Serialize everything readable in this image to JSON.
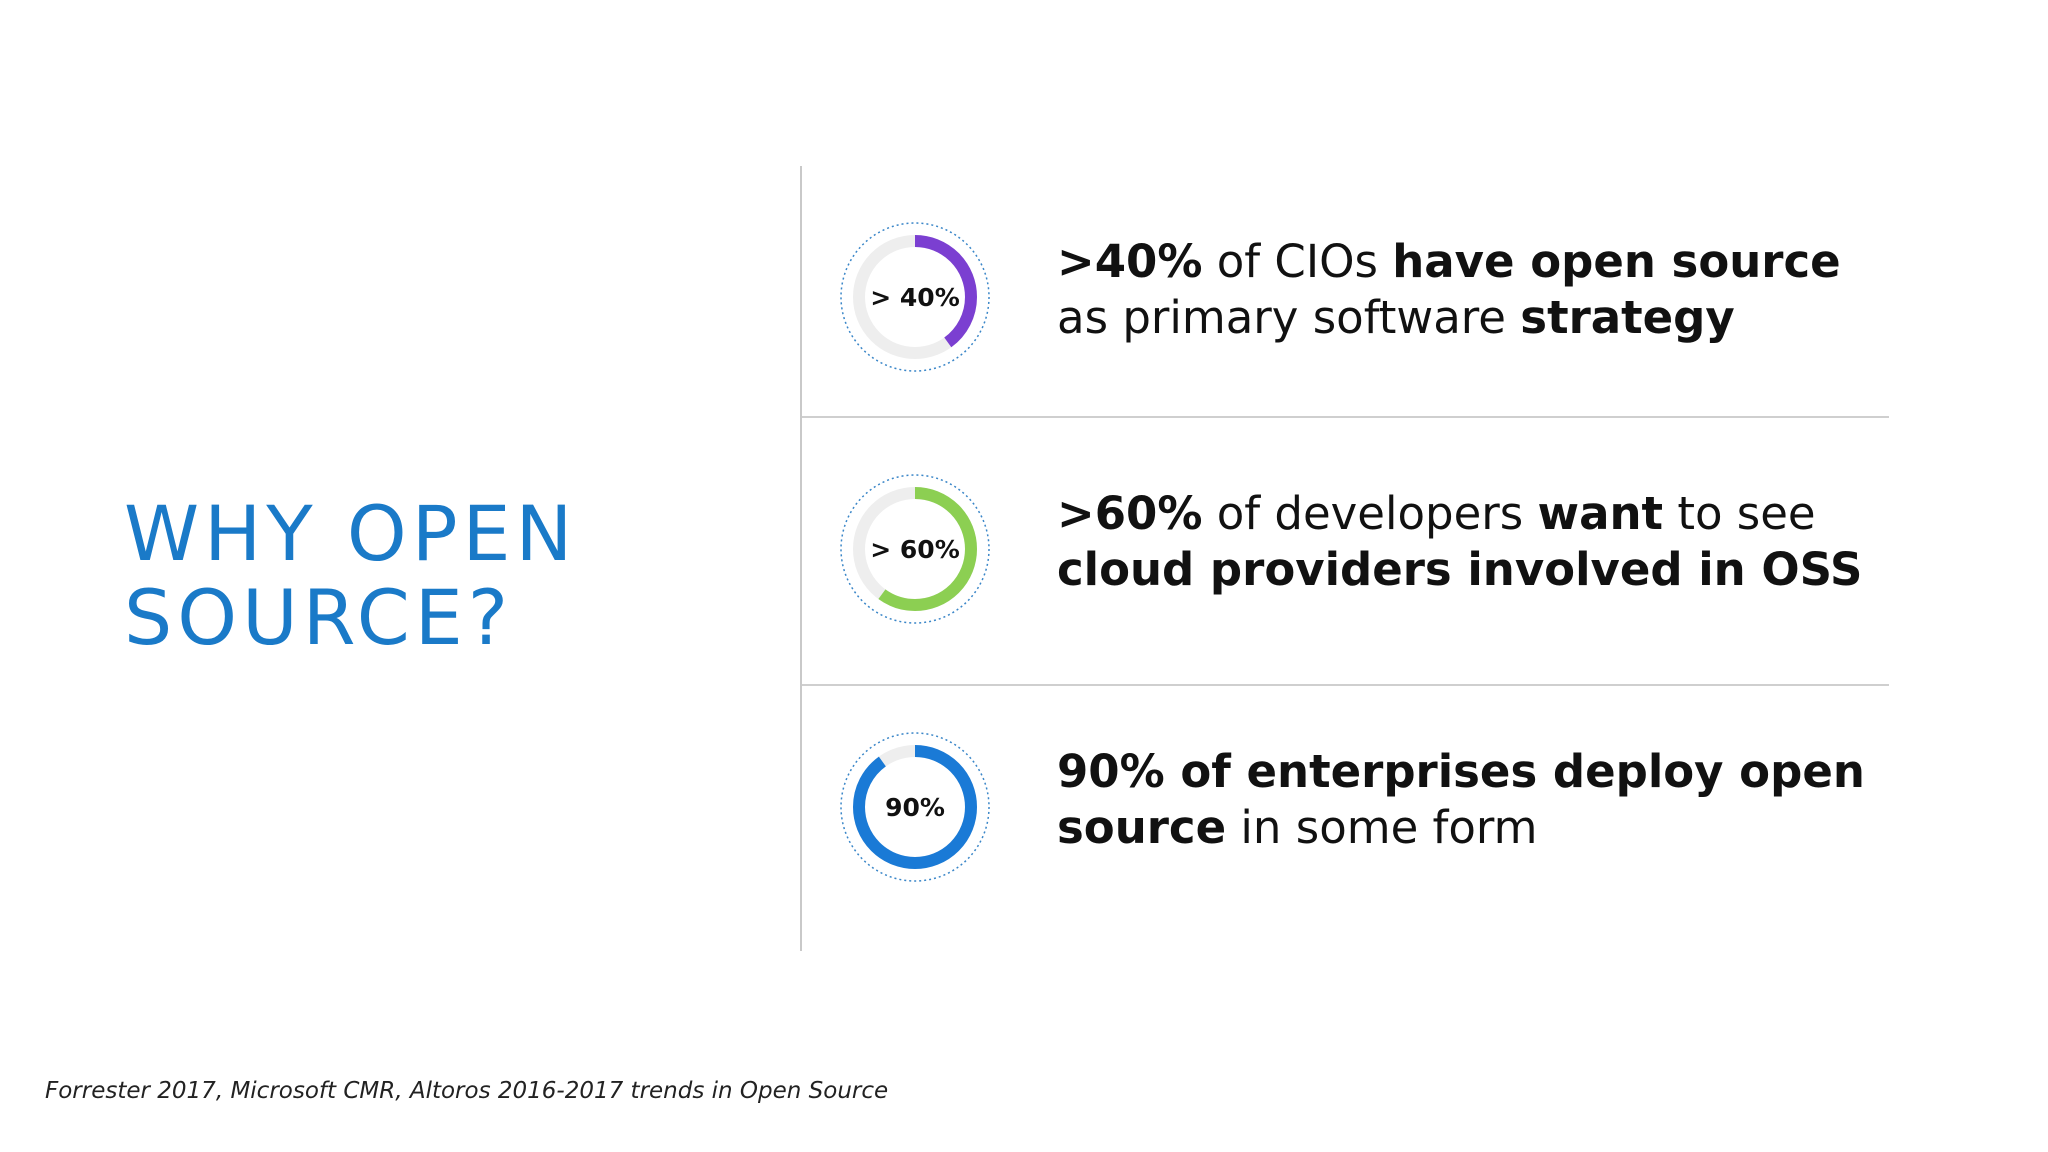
{
  "title": {
    "line1": "WHY OPEN",
    "line2": "SOURCE?"
  },
  "colors": {
    "title": "#1a7ac8",
    "ring_track": "#eeeeee",
    "ring_purple": "#7b3fd1",
    "ring_green": "#8ccf52",
    "ring_blue": "#1a7ad6",
    "ring_outline": "#3a86c8"
  },
  "stats": [
    {
      "ring_label": "> 40%",
      "fraction": 0.4,
      "color": "#7b3fd1",
      "parts": [
        {
          "text": ">40%",
          "bold": true
        },
        {
          "text": " of CIOs ",
          "bold": false
        },
        {
          "text": "have open source",
          "bold": true
        },
        {
          "text": " as primary software ",
          "bold": false
        },
        {
          "text": "strategy",
          "bold": true
        }
      ]
    },
    {
      "ring_label": "> 60%",
      "fraction": 0.6,
      "color": "#8ccf52",
      "parts": [
        {
          "text": ">60%",
          "bold": true
        },
        {
          "text": " of developers ",
          "bold": false
        },
        {
          "text": "want",
          "bold": true
        },
        {
          "text": " to see ",
          "bold": false
        },
        {
          "text": "cloud providers involved in OSS",
          "bold": true
        }
      ]
    },
    {
      "ring_label": "90%",
      "fraction": 0.9,
      "color": "#1a7ad6",
      "parts": [
        {
          "text": "90% of enterprises deploy open source",
          "bold": true
        },
        {
          "text": " in some form",
          "bold": false
        }
      ]
    }
  ],
  "footnote": "Forrester 2017, Microsoft CMR, Altoros 2016-2017 trends in Open Source"
}
